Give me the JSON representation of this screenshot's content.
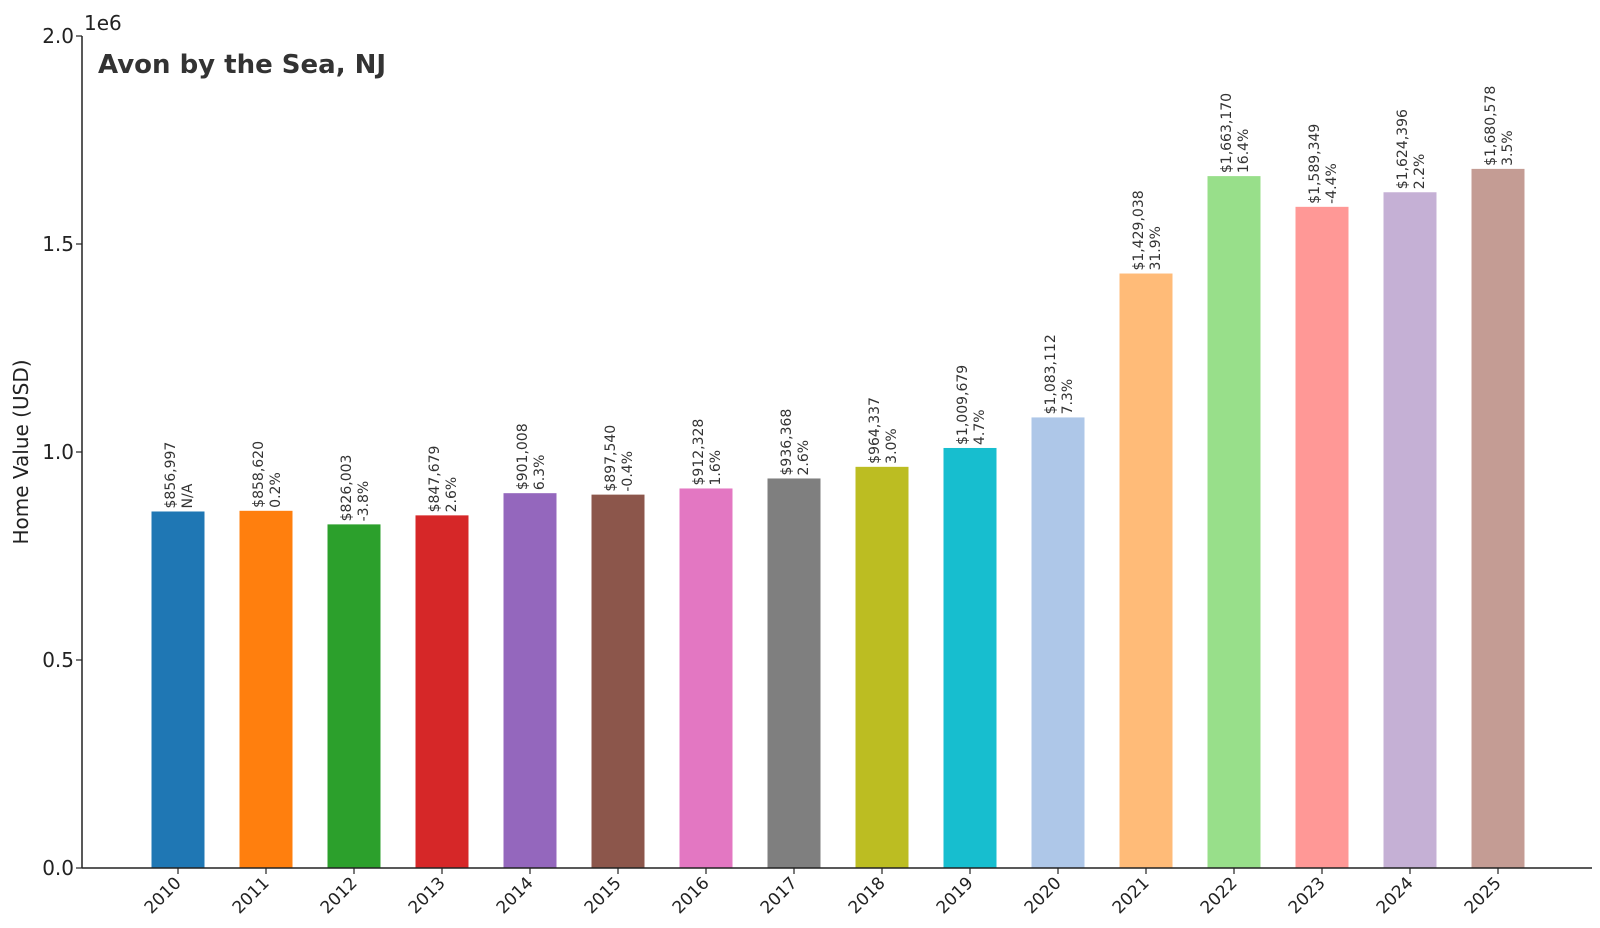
{
  "chart_data": {
    "type": "bar",
    "title": "Avon by the Sea, NJ",
    "xlabel": "",
    "ylabel": "Home Value (USD)",
    "y_offset_label": "1e6",
    "y_scale": 1000000,
    "ylim": [
      0,
      2000000
    ],
    "yticks": [
      0,
      500000,
      1000000,
      1500000,
      2000000
    ],
    "ytick_labels": [
      "0.0",
      "0.5",
      "1.0",
      "1.5",
      "2.0"
    ],
    "grid": false,
    "categories": [
      "2010",
      "2011",
      "2012",
      "2013",
      "2014",
      "2015",
      "2016",
      "2017",
      "2018",
      "2019",
      "2020",
      "2021",
      "2022",
      "2023",
      "2024",
      "2025"
    ],
    "values": [
      856997,
      858620,
      826003,
      847679,
      901008,
      897540,
      912328,
      936368,
      964337,
      1009679,
      1083112,
      1429038,
      1663170,
      1589349,
      1624396,
      1680578
    ],
    "value_labels": [
      "$856,997",
      "$858,620",
      "$826,003",
      "$847,679",
      "$901,008",
      "$897,540",
      "$912,328",
      "$936,368",
      "$964,337",
      "$1,009,679",
      "$1,083,112",
      "$1,429,038",
      "$1,663,170",
      "$1,589,349",
      "$1,624,396",
      "$1,680,578"
    ],
    "change_labels": [
      "N/A",
      "0.2%",
      "-3.8%",
      "2.6%",
      "6.3%",
      "-0.4%",
      "1.6%",
      "2.6%",
      "3.0%",
      "4.7%",
      "7.3%",
      "31.9%",
      "16.4%",
      "-4.4%",
      "2.2%",
      "3.5%"
    ],
    "colors": [
      "#1f77b4",
      "#ff7f0e",
      "#2ca02c",
      "#d62728",
      "#9467bd",
      "#8c564b",
      "#e377c2",
      "#7f7f7f",
      "#bcbd22",
      "#17becf",
      "#aec7e8",
      "#ffbb78",
      "#98df8a",
      "#ff9896",
      "#c5b0d5",
      "#c49c94"
    ]
  }
}
